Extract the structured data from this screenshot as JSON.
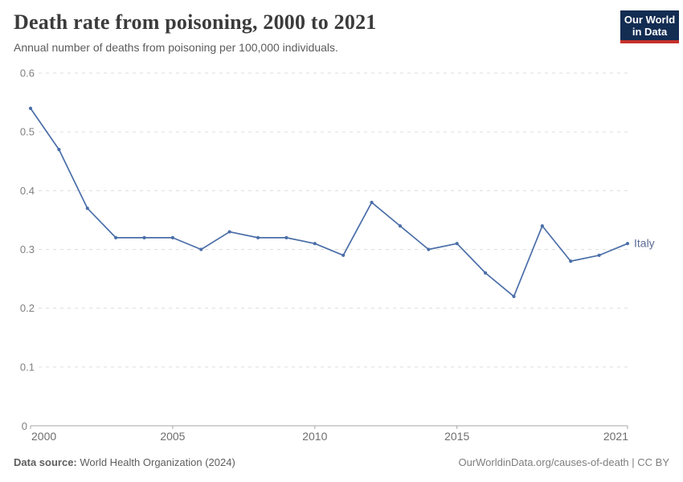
{
  "header": {
    "title": "Death rate from poisoning, 2000 to 2021",
    "subtitle": "Annual number of deaths from poisoning per 100,000 individuals.",
    "logo": {
      "line1": "Our World",
      "line2": "in Data",
      "bg_color": "#132C52",
      "bar_color": "#C5312B",
      "text_color": "#FFFFFF"
    }
  },
  "chart_data": {
    "type": "line",
    "title": "Death rate from poisoning, 2000 to 2021",
    "subtitle": "Annual number of deaths from poisoning per 100,000 individuals.",
    "x": [
      2000,
      2001,
      2002,
      2003,
      2004,
      2005,
      2006,
      2007,
      2008,
      2009,
      2010,
      2011,
      2012,
      2013,
      2014,
      2015,
      2016,
      2017,
      2018,
      2019,
      2020,
      2021
    ],
    "series": [
      {
        "name": "Italy",
        "color": "#4A6EA8",
        "label_color": "#5B6B96",
        "values": [
          0.54,
          0.47,
          0.37,
          0.32,
          0.32,
          0.32,
          0.3,
          0.33,
          0.32,
          0.32,
          0.31,
          0.29,
          0.38,
          0.34,
          0.3,
          0.31,
          0.26,
          0.22,
          0.34,
          0.28,
          0.29,
          0.31
        ]
      }
    ],
    "xlim": [
      2000,
      2021
    ],
    "ylim": [
      0,
      0.6
    ],
    "x_ticks": [
      2000,
      2005,
      2010,
      2015,
      2021
    ],
    "y_ticks": [
      0,
      0.1,
      0.2,
      0.3,
      0.4,
      0.5,
      0.6
    ],
    "y_tick_labels": [
      "0",
      "0.1",
      "0.2",
      "0.3",
      "0.4",
      "0.5",
      "0.6"
    ],
    "grid": "horizontal-dashed",
    "legend_position": "end-of-line",
    "xlabel": "",
    "ylabel": ""
  },
  "colors": {
    "grid": "#DDDDDD",
    "axis": "#A5A5A5",
    "y_tick_label": "#808080",
    "x_tick_label": "#6E6E6E"
  },
  "footer": {
    "source_label": "Data source:",
    "source_text": " World Health Organization (2024)",
    "credit": "OurWorldinData.org/causes-of-death | CC BY"
  }
}
